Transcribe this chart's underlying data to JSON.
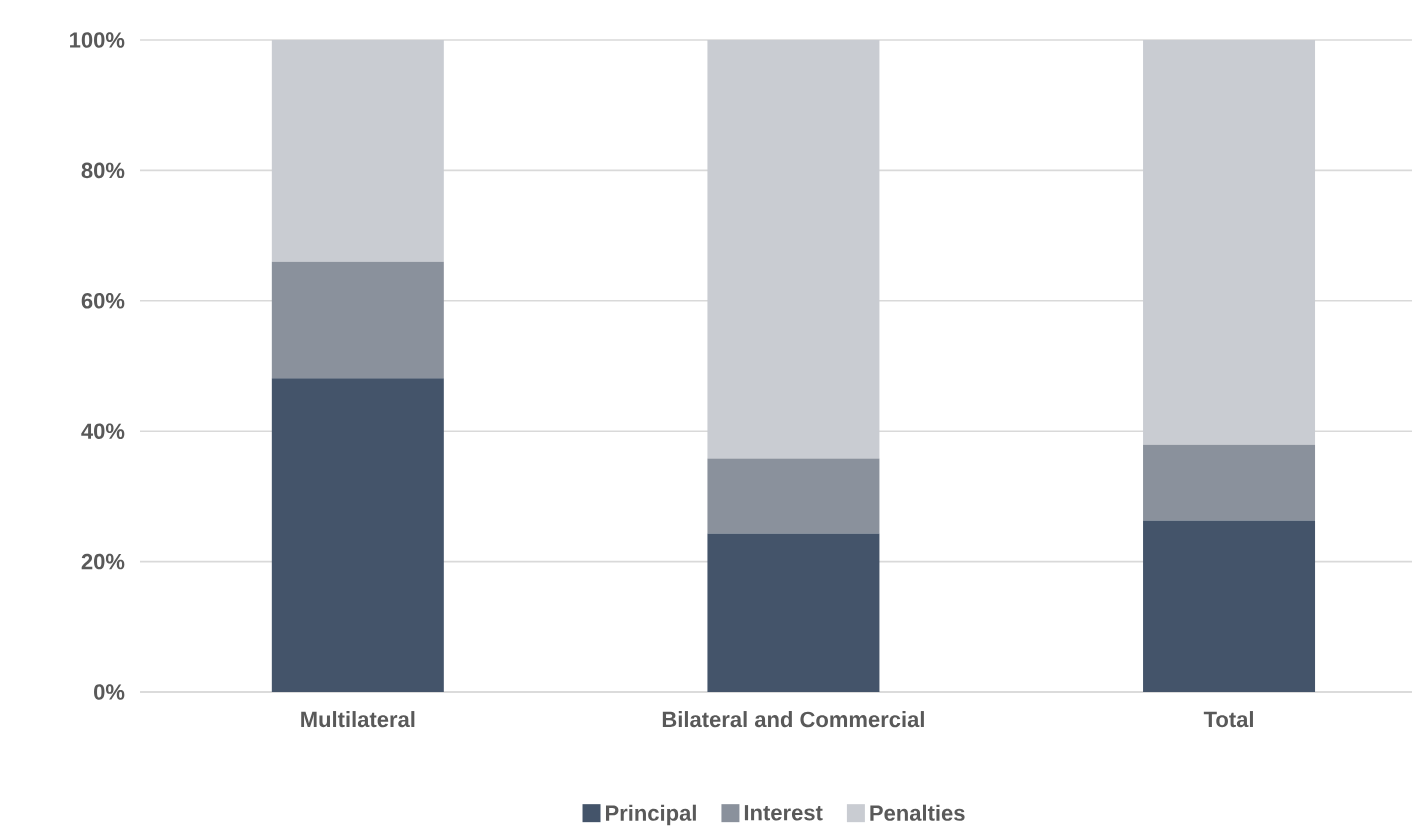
{
  "chart_data": {
    "type": "bar",
    "stacked": true,
    "categories": [
      "Multilateral",
      "Bilateral and Commercial",
      "Total"
    ],
    "series": [
      {
        "name": "Principal",
        "color": "#44546a",
        "values": [
          48.1,
          24.3,
          26.3
        ]
      },
      {
        "name": "Interest",
        "color": "#8a919c",
        "values": [
          17.9,
          11.5,
          11.6
        ]
      },
      {
        "name": "Penalties",
        "color": "#c9ccd2",
        "values": [
          34.0,
          64.2,
          62.1
        ]
      }
    ],
    "ylim": [
      0,
      100
    ],
    "yticks": [
      {
        "value": 0,
        "label": "0%"
      },
      {
        "value": 20,
        "label": "20%"
      },
      {
        "value": 40,
        "label": "40%"
      },
      {
        "value": 60,
        "label": "60%"
      },
      {
        "value": 80,
        "label": "80%"
      },
      {
        "value": 100,
        "label": "100%"
      }
    ],
    "grid": "y",
    "legend": "bottom"
  }
}
